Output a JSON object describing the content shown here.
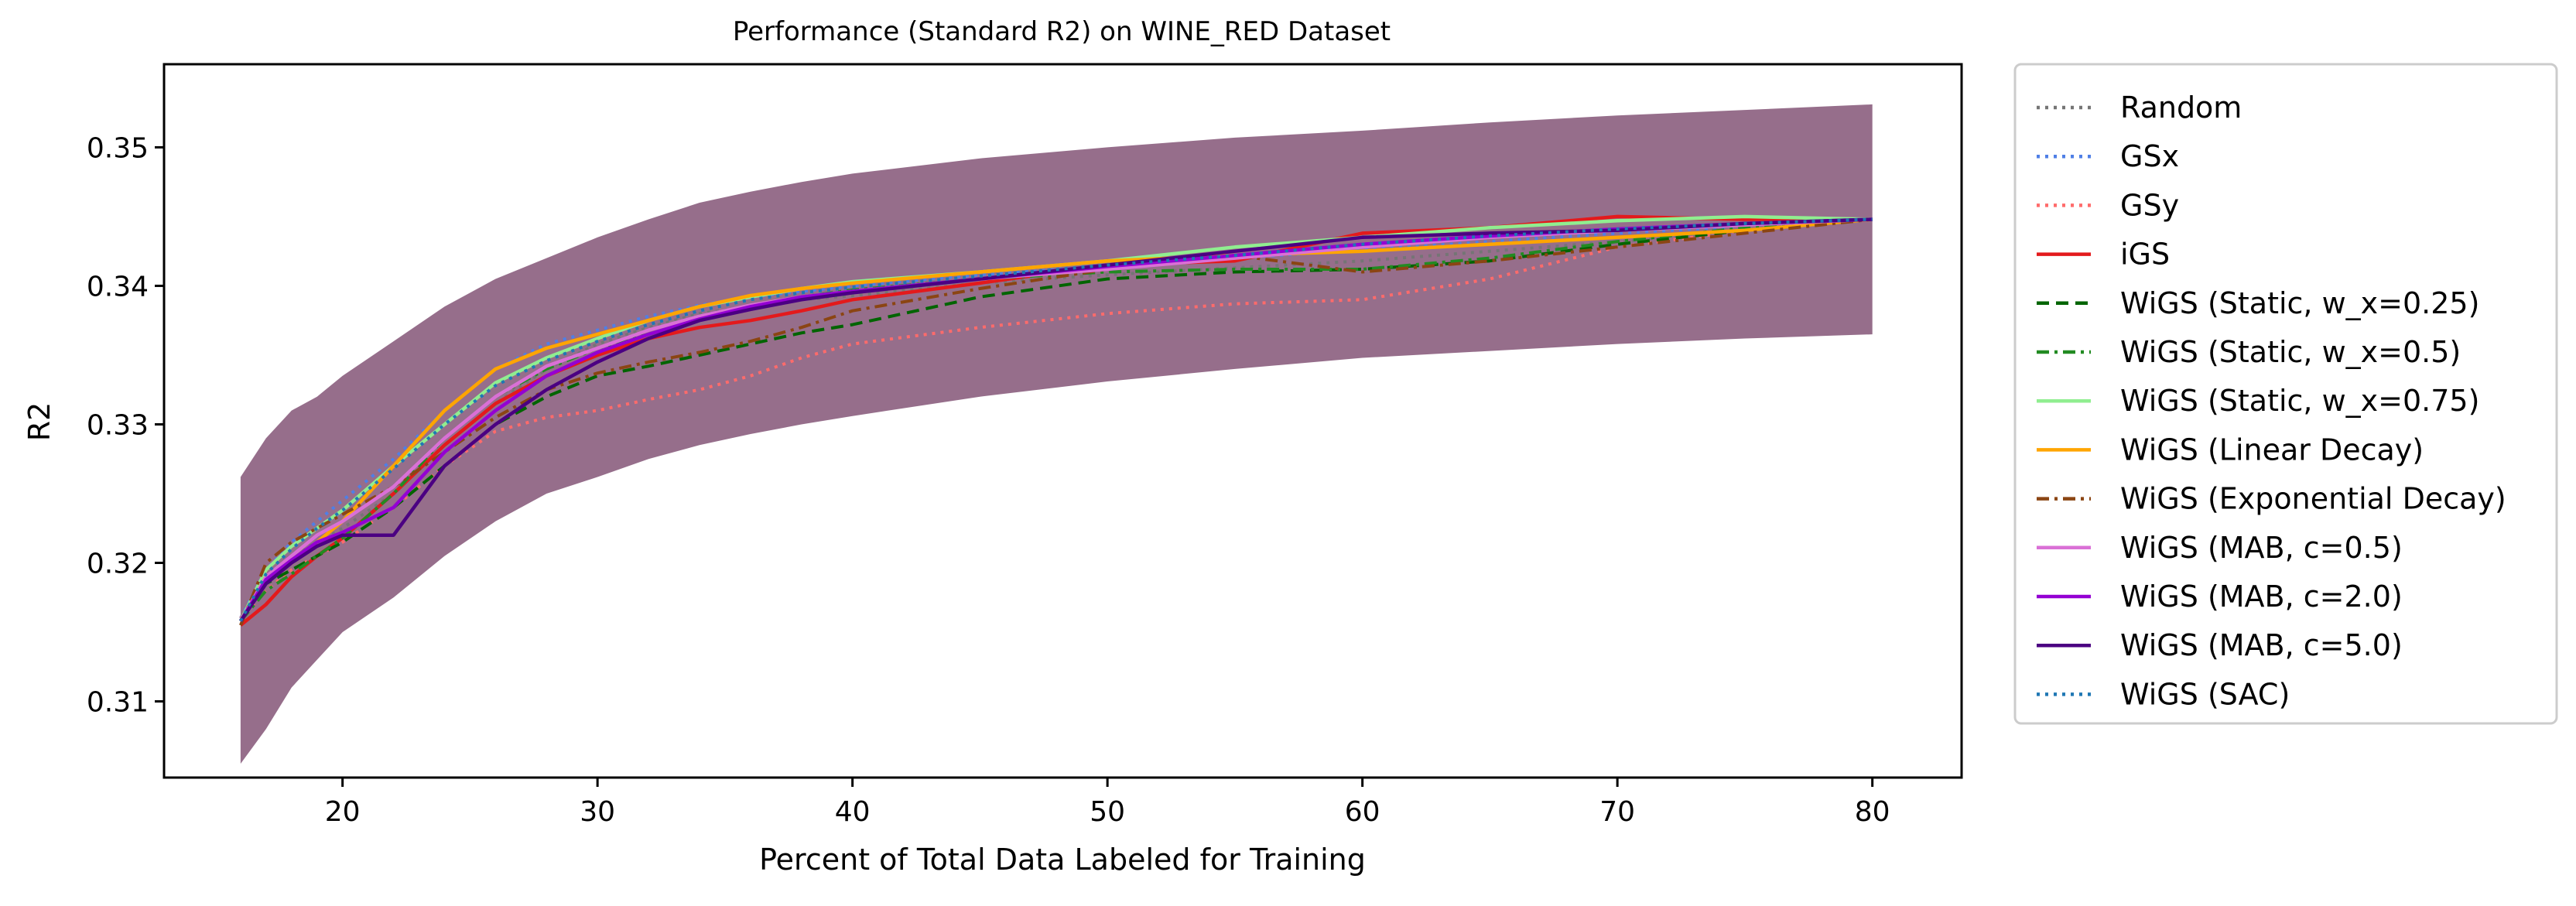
{
  "chart_data": {
    "type": "line",
    "title": "Performance (Standard R2) on WINE_RED Dataset",
    "xlabel": "Percent of Total Data Labeled for Training",
    "ylabel": "R2",
    "xlim": [
      13,
      83.5
    ],
    "ylim": [
      0.3045,
      0.356
    ],
    "xticks": [
      20,
      30,
      40,
      50,
      60,
      70,
      80
    ],
    "xtick_labels": [
      "20",
      "30",
      "40",
      "50",
      "60",
      "70",
      "80"
    ],
    "yticks": [
      0.31,
      0.32,
      0.33,
      0.34,
      0.35
    ],
    "ytick_labels": [
      "0.31",
      "0.32",
      "0.33",
      "0.34",
      "0.35"
    ],
    "grid": false,
    "legend_position": "outside-right",
    "x": [
      16,
      17,
      18,
      19,
      20,
      22,
      24,
      26,
      28,
      30,
      32,
      34,
      36,
      38,
      40,
      45,
      50,
      55,
      60,
      65,
      70,
      75,
      80
    ],
    "band": {
      "color": "#8b5e7e",
      "upper": [
        0.3262,
        0.329,
        0.331,
        0.332,
        0.3335,
        0.336,
        0.3385,
        0.3405,
        0.342,
        0.3435,
        0.3448,
        0.346,
        0.3468,
        0.3475,
        0.3481,
        0.3492,
        0.35,
        0.3507,
        0.3512,
        0.3518,
        0.3523,
        0.3527,
        0.3531
      ],
      "lower": [
        0.3055,
        0.308,
        0.311,
        0.313,
        0.315,
        0.3175,
        0.3205,
        0.323,
        0.325,
        0.3262,
        0.3275,
        0.3285,
        0.3293,
        0.33,
        0.3306,
        0.332,
        0.3331,
        0.334,
        0.3348,
        0.3353,
        0.3358,
        0.3362,
        0.3365
      ]
    },
    "series": [
      {
        "name": "Random",
        "color": "#757575",
        "dash": "dotted",
        "values": [
          0.316,
          0.319,
          0.3205,
          0.3215,
          0.3225,
          0.325,
          0.3285,
          0.3315,
          0.334,
          0.3358,
          0.337,
          0.338,
          0.3385,
          0.339,
          0.3393,
          0.3402,
          0.3408,
          0.3413,
          0.3418,
          0.3425,
          0.3432,
          0.344,
          0.3448
        ]
      },
      {
        "name": "GSx",
        "color": "#4f7fe6",
        "dash": "dotted",
        "values": [
          0.316,
          0.3195,
          0.3215,
          0.323,
          0.3245,
          0.3275,
          0.331,
          0.334,
          0.3358,
          0.3368,
          0.3378,
          0.3386,
          0.3392,
          0.3396,
          0.34,
          0.3408,
          0.3414,
          0.342,
          0.3426,
          0.3432,
          0.3438,
          0.3443,
          0.3448
        ]
      },
      {
        "name": "GSy",
        "color": "#ff6b6b",
        "dash": "dotted",
        "values": [
          0.316,
          0.318,
          0.3195,
          0.3205,
          0.3215,
          0.324,
          0.327,
          0.3295,
          0.3305,
          0.331,
          0.3318,
          0.3325,
          0.3335,
          0.3348,
          0.3358,
          0.337,
          0.338,
          0.3387,
          0.339,
          0.3405,
          0.3428,
          0.344,
          0.3448
        ]
      },
      {
        "name": "iGS",
        "color": "#e31a1c",
        "dash": "solid",
        "values": [
          0.3155,
          0.317,
          0.319,
          0.3205,
          0.3218,
          0.325,
          0.3285,
          0.3315,
          0.3335,
          0.335,
          0.3362,
          0.337,
          0.3375,
          0.3382,
          0.339,
          0.3402,
          0.3415,
          0.3418,
          0.3438,
          0.3442,
          0.345,
          0.3448,
          0.3448
        ]
      },
      {
        "name": "WiGS (Static, w_x=0.25)",
        "color": "#006400",
        "dash": "dashed",
        "values": [
          0.3158,
          0.3185,
          0.3195,
          0.3205,
          0.3215,
          0.324,
          0.327,
          0.33,
          0.332,
          0.3335,
          0.3342,
          0.335,
          0.3358,
          0.3366,
          0.3372,
          0.3392,
          0.3405,
          0.341,
          0.3412,
          0.3418,
          0.343,
          0.344,
          0.3448
        ]
      },
      {
        "name": "WiGS (Static, w_x=0.5)",
        "color": "#228b22",
        "dash": "dashdot",
        "values": [
          0.3158,
          0.318,
          0.3192,
          0.3205,
          0.3218,
          0.325,
          0.329,
          0.332,
          0.334,
          0.3355,
          0.3365,
          0.3375,
          0.3385,
          0.3392,
          0.3397,
          0.3405,
          0.341,
          0.3412,
          0.3412,
          0.342,
          0.3432,
          0.3442,
          0.3448
        ]
      },
      {
        "name": "WiGS (Static, w_x=0.75)",
        "color": "#90ee90",
        "dash": "solid",
        "values": [
          0.3158,
          0.3195,
          0.3212,
          0.3225,
          0.3238,
          0.327,
          0.33,
          0.333,
          0.3348,
          0.3362,
          0.3375,
          0.3385,
          0.3392,
          0.3398,
          0.3403,
          0.341,
          0.3418,
          0.3428,
          0.3435,
          0.3442,
          0.3447,
          0.345,
          0.3448
        ]
      },
      {
        "name": "WiGS (Linear Decay)",
        "color": "#ffa500",
        "dash": "solid",
        "values": [
          0.3158,
          0.319,
          0.32,
          0.3215,
          0.323,
          0.327,
          0.331,
          0.334,
          0.3355,
          0.3365,
          0.3375,
          0.3385,
          0.3393,
          0.3398,
          0.3402,
          0.341,
          0.3418,
          0.3422,
          0.3425,
          0.343,
          0.3435,
          0.344,
          0.3448
        ]
      },
      {
        "name": "WiGS (Exponential Decay)",
        "color": "#8b4513",
        "dash": "dashdot",
        "values": [
          0.3155,
          0.32,
          0.3215,
          0.3225,
          0.3235,
          0.3255,
          0.328,
          0.3305,
          0.3325,
          0.3337,
          0.3345,
          0.3352,
          0.336,
          0.337,
          0.3382,
          0.3398,
          0.3412,
          0.3422,
          0.341,
          0.3418,
          0.3428,
          0.3438,
          0.3448
        ]
      },
      {
        "name": "WiGS (MAB, c=0.5)",
        "color": "#da70d6",
        "dash": "solid",
        "values": [
          0.3158,
          0.319,
          0.3205,
          0.322,
          0.323,
          0.3255,
          0.329,
          0.332,
          0.3342,
          0.3355,
          0.3368,
          0.3378,
          0.3386,
          0.3392,
          0.3396,
          0.3405,
          0.3412,
          0.342,
          0.3428,
          0.3435,
          0.344,
          0.3444,
          0.3448
        ]
      },
      {
        "name": "WiGS (MAB, c=2.0)",
        "color": "#9400d3",
        "dash": "solid",
        "values": [
          0.3158,
          0.3188,
          0.3202,
          0.3215,
          0.3222,
          0.324,
          0.328,
          0.331,
          0.3335,
          0.3352,
          0.3365,
          0.3376,
          0.3385,
          0.3392,
          0.3396,
          0.3405,
          0.3414,
          0.3422,
          0.343,
          0.3436,
          0.3441,
          0.3445,
          0.3448
        ]
      },
      {
        "name": "WiGS (MAB, c=5.0)",
        "color": "#4b0082",
        "dash": "solid",
        "values": [
          0.3158,
          0.3185,
          0.32,
          0.3212,
          0.322,
          0.322,
          0.327,
          0.33,
          0.3325,
          0.3345,
          0.3362,
          0.3375,
          0.3383,
          0.339,
          0.3395,
          0.3405,
          0.3415,
          0.3425,
          0.3435,
          0.3438,
          0.344,
          0.3445,
          0.3448
        ]
      },
      {
        "name": "WiGS (SAC)",
        "color": "#1f77b4",
        "dash": "dotted",
        "values": [
          0.3158,
          0.3192,
          0.321,
          0.3225,
          0.3238,
          0.3268,
          0.33,
          0.3328,
          0.3346,
          0.336,
          0.3372,
          0.3382,
          0.339,
          0.3395,
          0.3399,
          0.3407,
          0.3415,
          0.3422,
          0.343,
          0.3436,
          0.3441,
          0.3445,
          0.3448
        ]
      }
    ]
  }
}
